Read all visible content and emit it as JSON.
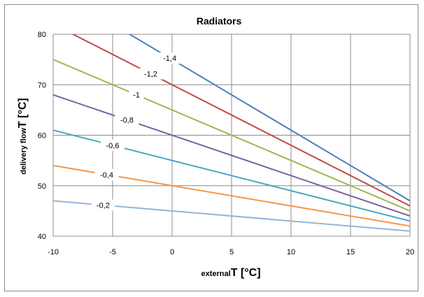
{
  "chart_data": {
    "type": "line",
    "title": "Radiators",
    "xlabel_small": "external",
    "xlabel_main": "T [°C]",
    "ylabel_small": "delivery flow",
    "ylabel_main": "T [°C]",
    "xlim": [
      -10,
      20
    ],
    "ylim": [
      40,
      80
    ],
    "x_ticks": [
      "-10",
      "-5",
      "0",
      "5",
      "10",
      "15",
      "20"
    ],
    "y_ticks": [
      "40",
      "50",
      "60",
      "70",
      "80"
    ],
    "grid": true,
    "series": [
      {
        "name": "-1,4",
        "color": "#4a7ebb",
        "x": [
          -10,
          20
        ],
        "y": [
          89,
          47
        ],
        "label_x": -0.2
      },
      {
        "name": "-1,2",
        "color": "#be4b48",
        "x": [
          -10,
          20
        ],
        "y": [
          82,
          46
        ],
        "label_x": -1.8
      },
      {
        "name": "-1",
        "color": "#98b954",
        "x": [
          -10,
          20
        ],
        "y": [
          75,
          45
        ],
        "label_x": -3
      },
      {
        "name": "-0,8",
        "color": "#7d60a0",
        "x": [
          -10,
          20
        ],
        "y": [
          68,
          44
        ],
        "label_x": -3.8
      },
      {
        "name": "-0,6",
        "color": "#46aac5",
        "x": [
          -10,
          20
        ],
        "y": [
          61,
          43
        ],
        "label_x": -5
      },
      {
        "name": "-0,4",
        "color": "#f79646",
        "x": [
          -10,
          20
        ],
        "y": [
          54,
          42
        ],
        "label_x": -5.5
      },
      {
        "name": "-0,2",
        "color": "#95b3d7",
        "x": [
          -10,
          20
        ],
        "y": [
          47,
          41
        ],
        "label_x": -5.8
      }
    ]
  }
}
